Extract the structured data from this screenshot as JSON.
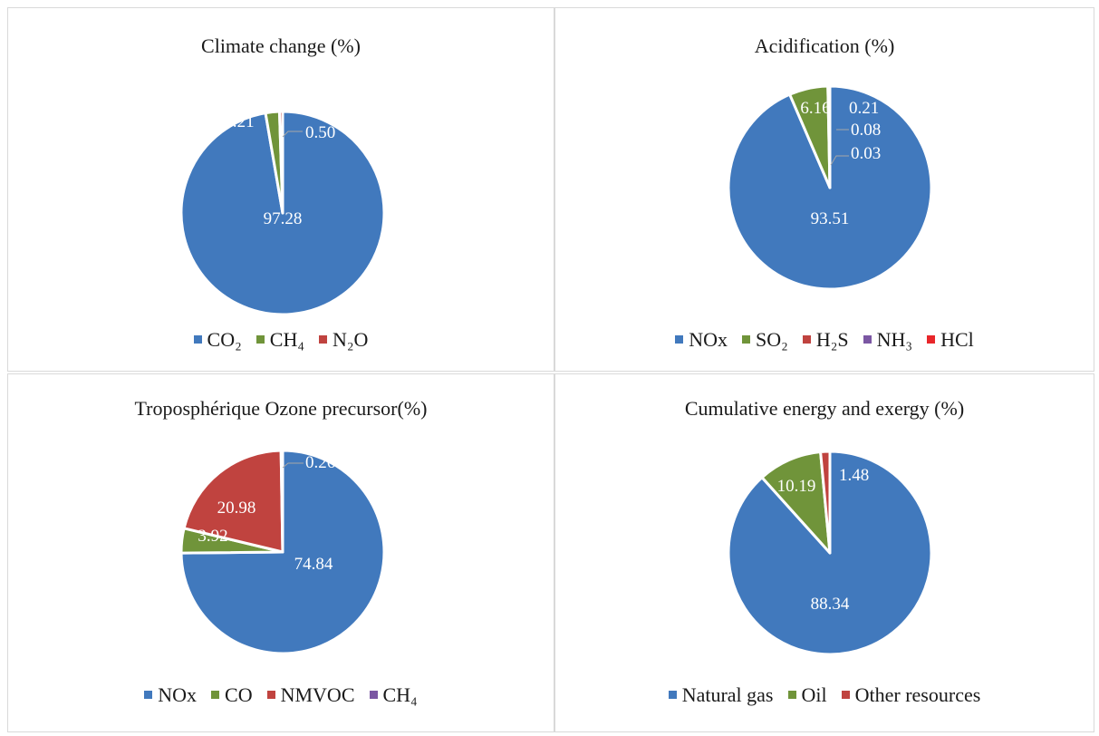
{
  "colors": {
    "blue": "#4179BD",
    "green": "#70943A",
    "red": "#C0433F",
    "purple": "#7B57A3",
    "brightred": "#E8262A"
  },
  "chart_data": [
    {
      "type": "pie",
      "title": "Climate change (%)",
      "categories": [
        "CO₂",
        "CH₄",
        "N₂O"
      ],
      "values": [
        97.28,
        2.21,
        0.5
      ],
      "data_labels": [
        "97.28",
        "2.21",
        "0.50"
      ],
      "colors": [
        "#4179BD",
        "#70943A",
        "#C0433F"
      ],
      "legend": "bottom"
    },
    {
      "type": "pie",
      "title": "Acidification (%)",
      "categories": [
        "NOx",
        "SO₂",
        "H₂S",
        "NH₃",
        "HCl"
      ],
      "values": [
        93.51,
        6.16,
        0.21,
        0.08,
        0.03
      ],
      "data_labels": [
        "93.51",
        "6.16",
        "0.21",
        "0.08",
        "0.03"
      ],
      "colors": [
        "#4179BD",
        "#70943A",
        "#C0433F",
        "#7B57A3",
        "#E8262A"
      ],
      "legend": "bottom"
    },
    {
      "type": "pie",
      "title": "Troposphérique Ozone precursor(%)",
      "categories": [
        "NOx",
        "CO",
        "NMVOC",
        "CH₄"
      ],
      "values": [
        74.84,
        3.92,
        20.98,
        0.26
      ],
      "data_labels": [
        "74.84",
        "3.92",
        "20.98",
        "0.26"
      ],
      "colors": [
        "#4179BD",
        "#70943A",
        "#C0433F",
        "#7B57A3"
      ],
      "legend": "bottom"
    },
    {
      "type": "pie",
      "title": "Cumulative energy and exergy (%)",
      "categories": [
        "Natural gas",
        "Oil",
        "Other resources"
      ],
      "values": [
        88.34,
        10.19,
        1.48
      ],
      "data_labels": [
        "88.34",
        "10.19",
        "1.48"
      ],
      "colors": [
        "#4179BD",
        "#70943A",
        "#C0433F"
      ],
      "legend": "bottom"
    }
  ]
}
